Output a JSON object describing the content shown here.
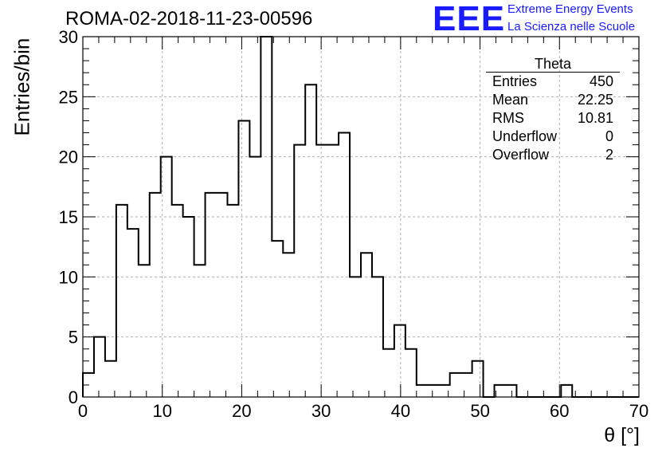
{
  "title": "ROMA-02-2018-11-23-00596",
  "logo": {
    "mark": "EEE",
    "line1": "Extreme Energy Events",
    "line2": "La Scienza nelle Scuole",
    "color": "#1a1aff"
  },
  "stats_box": {
    "title": "Theta",
    "rows": [
      {
        "label": "Entries",
        "value": "450"
      },
      {
        "label": "Mean",
        "value": "22.25"
      },
      {
        "label": "RMS",
        "value": "10.81"
      },
      {
        "label": "Underflow",
        "value": "0"
      },
      {
        "label": "Overflow",
        "value": "2"
      }
    ]
  },
  "chart_data": {
    "type": "bar",
    "style": "step-histogram",
    "xlabel": "θ [°]",
    "ylabel": "Entries/bin",
    "xlim": [
      0,
      70
    ],
    "ylim": [
      0,
      30
    ],
    "bin_width": 1.4,
    "bin_start": 0,
    "x_ticks": [
      "0",
      "10",
      "20",
      "30",
      "40",
      "50",
      "60",
      "70"
    ],
    "y_ticks": [
      "0",
      "5",
      "10",
      "15",
      "20",
      "25",
      "30"
    ],
    "grid": true,
    "values": [
      2,
      5,
      3,
      16,
      14,
      11,
      17,
      20,
      16,
      15,
      11,
      17,
      17,
      16,
      23,
      20,
      30,
      13,
      12,
      21,
      26,
      21,
      21,
      22,
      10,
      12,
      10,
      4,
      6,
      4,
      1,
      1,
      1,
      2,
      2,
      3,
      0,
      1,
      1,
      0,
      0,
      0,
      0,
      1,
      0,
      0,
      0,
      0,
      0,
      0
    ]
  }
}
